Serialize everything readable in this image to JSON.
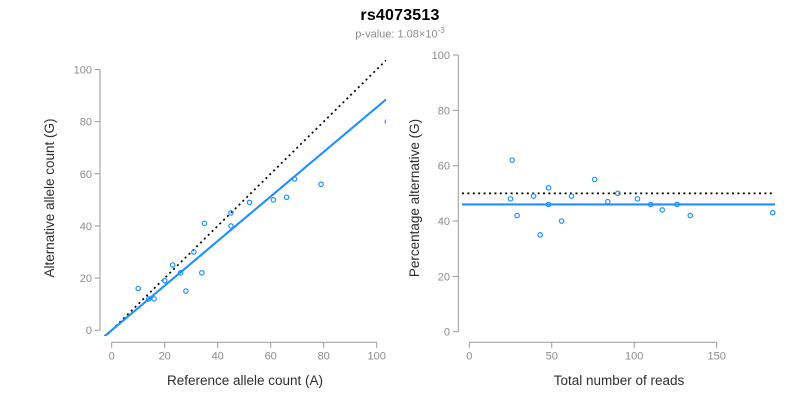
{
  "header": {
    "title": "rs4073513",
    "subtitle_base": "p-value: 1.08×10",
    "subtitle_exponent": "-3"
  },
  "colors": {
    "accent_blue": "#1E90FF",
    "reference_line": "#000000",
    "axis_line": "#999999",
    "tick_label": "#8c8c8c",
    "axis_title": "#2e2e2e"
  },
  "chart_data": [
    {
      "type": "scatter",
      "name": "allele-counts-plot",
      "xlabel": "Reference allele count (A)",
      "ylabel": "Alternative allele count (G)",
      "xlim": [
        0,
        100
      ],
      "ylim": [
        0,
        100
      ],
      "xticks": [
        0,
        20,
        40,
        60,
        80,
        100
      ],
      "yticks": [
        0,
        20,
        40,
        60,
        80,
        100
      ],
      "grid": false,
      "legend": false,
      "points": [
        [
          10,
          16
        ],
        [
          14,
          12
        ],
        [
          16,
          12
        ],
        [
          20,
          19
        ],
        [
          23,
          25
        ],
        [
          26,
          22
        ],
        [
          28,
          15
        ],
        [
          31,
          30
        ],
        [
          34,
          22
        ],
        [
          35,
          41
        ],
        [
          45,
          45
        ],
        [
          45,
          40
        ],
        [
          52,
          49
        ],
        [
          61,
          50
        ],
        [
          66,
          51
        ],
        [
          69,
          58
        ],
        [
          79,
          56
        ],
        [
          104,
          80
        ]
      ],
      "lines": [
        {
          "name": "identity-line",
          "slope": 1,
          "intercept": 0,
          "style": "dotted",
          "color": "#000000"
        },
        {
          "name": "fit-line",
          "slope": 0.855,
          "intercept": 0,
          "style": "solid",
          "color": "#1E90FF"
        }
      ]
    },
    {
      "type": "scatter",
      "name": "percentage-alternative-plot",
      "xlabel": "Total number of reads",
      "ylabel": "Percentage alternative (G)",
      "xlim": [
        0,
        150
      ],
      "ylim": [
        0,
        100
      ],
      "xticks": [
        0,
        50,
        100,
        150
      ],
      "yticks": [
        0,
        20,
        40,
        60,
        80,
        100
      ],
      "grid": false,
      "legend": false,
      "points": [
        [
          26,
          62
        ],
        [
          25,
          48
        ],
        [
          29,
          42
        ],
        [
          39,
          49
        ],
        [
          48,
          52
        ],
        [
          48,
          46
        ],
        [
          43,
          35
        ],
        [
          62,
          49
        ],
        [
          56,
          40
        ],
        [
          76,
          55
        ],
        [
          84,
          47
        ],
        [
          90,
          50
        ],
        [
          102,
          48
        ],
        [
          110,
          46
        ],
        [
          117,
          44
        ],
        [
          126,
          46
        ],
        [
          134,
          42
        ],
        [
          184,
          43
        ]
      ],
      "lines": [
        {
          "name": "null-50pct-line",
          "yvalue": 50,
          "style": "dotted",
          "color": "#000000"
        },
        {
          "name": "mean-pct-line",
          "yvalue": 46,
          "style": "solid",
          "color": "#1E90FF"
        }
      ]
    }
  ]
}
